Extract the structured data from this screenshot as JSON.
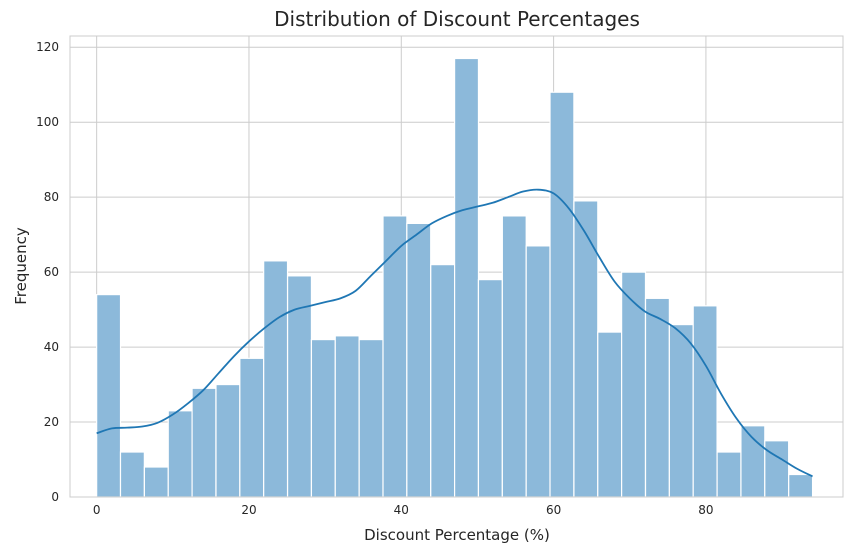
{
  "chart_data": {
    "type": "bar",
    "title": "Distribution of Discount Percentages",
    "xlabel": "Discount Percentage (%)",
    "ylabel": "Frequency",
    "xlim": [
      -3.5,
      98
    ],
    "ylim": [
      0,
      123
    ],
    "x_ticks": [
      0,
      20,
      40,
      60,
      80
    ],
    "y_ticks": [
      0,
      20,
      40,
      60,
      80,
      100,
      120
    ],
    "grid": true,
    "bin_width": 3.133,
    "bin_start": 0,
    "bins": [
      {
        "x": 0,
        "value": 54
      },
      {
        "x": 3.13,
        "value": 12
      },
      {
        "x": 6.27,
        "value": 8
      },
      {
        "x": 9.4,
        "value": 23
      },
      {
        "x": 12.53,
        "value": 29
      },
      {
        "x": 15.67,
        "value": 30
      },
      {
        "x": 18.8,
        "value": 37
      },
      {
        "x": 21.93,
        "value": 63
      },
      {
        "x": 25.07,
        "value": 59
      },
      {
        "x": 28.2,
        "value": 42
      },
      {
        "x": 31.33,
        "value": 43
      },
      {
        "x": 34.47,
        "value": 42
      },
      {
        "x": 37.6,
        "value": 75
      },
      {
        "x": 40.73,
        "value": 73
      },
      {
        "x": 43.87,
        "value": 62
      },
      {
        "x": 47.0,
        "value": 117
      },
      {
        "x": 50.13,
        "value": 58
      },
      {
        "x": 53.27,
        "value": 75
      },
      {
        "x": 56.4,
        "value": 67
      },
      {
        "x": 59.53,
        "value": 108
      },
      {
        "x": 62.67,
        "value": 79
      },
      {
        "x": 65.8,
        "value": 44
      },
      {
        "x": 68.93,
        "value": 60
      },
      {
        "x": 72.07,
        "value": 53
      },
      {
        "x": 75.2,
        "value": 46
      },
      {
        "x": 78.33,
        "value": 51
      },
      {
        "x": 81.47,
        "value": 12
      },
      {
        "x": 84.6,
        "value": 19
      },
      {
        "x": 87.73,
        "value": 15
      },
      {
        "x": 90.87,
        "value": 6
      }
    ],
    "kde": [
      [
        0,
        17
      ],
      [
        2,
        18.3
      ],
      [
        4,
        18.5
      ],
      [
        6,
        18.8
      ],
      [
        8,
        19.8
      ],
      [
        10,
        22
      ],
      [
        12,
        25
      ],
      [
        14,
        28.5
      ],
      [
        16,
        33
      ],
      [
        18,
        37.5
      ],
      [
        20,
        41.5
      ],
      [
        22,
        45
      ],
      [
        24,
        48
      ],
      [
        26,
        50
      ],
      [
        28,
        51
      ],
      [
        30,
        52
      ],
      [
        32,
        53
      ],
      [
        34,
        55
      ],
      [
        36,
        59
      ],
      [
        38,
        63
      ],
      [
        40,
        67
      ],
      [
        42,
        70
      ],
      [
        44,
        73
      ],
      [
        46,
        75
      ],
      [
        48,
        76.5
      ],
      [
        50,
        77.5
      ],
      [
        52,
        78.5
      ],
      [
        54,
        80
      ],
      [
        56,
        81.5
      ],
      [
        58,
        82
      ],
      [
        60,
        81
      ],
      [
        62,
        77
      ],
      [
        64,
        71
      ],
      [
        66,
        64
      ],
      [
        68,
        57.5
      ],
      [
        70,
        53
      ],
      [
        72,
        49.5
      ],
      [
        74,
        47.5
      ],
      [
        76,
        45
      ],
      [
        78,
        41
      ],
      [
        80,
        35
      ],
      [
        82,
        27.5
      ],
      [
        84,
        21
      ],
      [
        86,
        16
      ],
      [
        88,
        12.5
      ],
      [
        90,
        10
      ],
      [
        92,
        7.5
      ],
      [
        94,
        5.5
      ]
    ],
    "colors": {
      "bar_fill": "#8cb9da",
      "bar_edge": "#ffffff",
      "kde_line": "#1f77b4",
      "grid": "#cccccc",
      "spine": "#cccccc"
    }
  }
}
